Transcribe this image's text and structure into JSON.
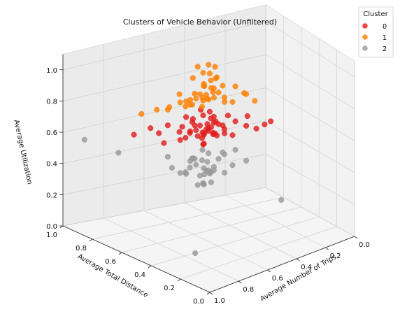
{
  "chart_data": {
    "type": "scatter",
    "projection": "3d",
    "title": "Clusters of Vehicle Behavior (Unfiltered)",
    "xlabel": "Average Number of Trips",
    "ylabel": "Average Total Distance",
    "zlabel": "Average Utilization",
    "xlim": [
      0,
      1
    ],
    "ylim": [
      0,
      1
    ],
    "zlim": [
      0,
      1
    ],
    "x_ticks": [
      "0.0",
      "0.2",
      "0.4",
      "0.6",
      "0.8",
      "1.0"
    ],
    "y_ticks": [
      "0.0",
      "0.2",
      "0.4",
      "0.6",
      "0.8",
      "1.0"
    ],
    "z_ticks": [
      "0.0",
      "0.2",
      "0.4",
      "0.6",
      "0.8",
      "1.0"
    ],
    "grid": true,
    "legend": {
      "title": "Cluster",
      "position": "top-right"
    },
    "series": [
      {
        "name": "0",
        "color": "#e41a1c",
        "points": [
          [
            0.55,
            0.56,
            0.7
          ],
          [
            0.57,
            0.54,
            0.68
          ],
          [
            0.53,
            0.58,
            0.66
          ],
          [
            0.56,
            0.57,
            0.64
          ],
          [
            0.54,
            0.52,
            0.72
          ],
          [
            0.58,
            0.56,
            0.62
          ],
          [
            0.52,
            0.55,
            0.74
          ],
          [
            0.6,
            0.58,
            0.67
          ],
          [
            0.55,
            0.6,
            0.63
          ],
          [
            0.5,
            0.54,
            0.69
          ],
          [
            0.57,
            0.5,
            0.71
          ],
          [
            0.62,
            0.6,
            0.65
          ],
          [
            0.53,
            0.62,
            0.6
          ],
          [
            0.48,
            0.52,
            0.66
          ],
          [
            0.59,
            0.53,
            0.6
          ],
          [
            0.56,
            0.58,
            0.75
          ],
          [
            0.64,
            0.57,
            0.68
          ],
          [
            0.51,
            0.59,
            0.71
          ],
          [
            0.46,
            0.48,
            0.63
          ],
          [
            0.62,
            0.52,
            0.73
          ],
          [
            0.58,
            0.64,
            0.69
          ],
          [
            0.45,
            0.58,
            0.65
          ],
          [
            0.66,
            0.62,
            0.61
          ],
          [
            0.52,
            0.46,
            0.67
          ],
          [
            0.6,
            0.66,
            0.72
          ],
          [
            0.43,
            0.5,
            0.7
          ],
          [
            0.68,
            0.55,
            0.66
          ],
          [
            0.54,
            0.68,
            0.64
          ],
          [
            0.7,
            0.66,
            0.7
          ],
          [
            0.4,
            0.45,
            0.68
          ],
          [
            0.49,
            0.63,
            0.73
          ],
          [
            0.63,
            0.48,
            0.63
          ],
          [
            0.57,
            0.61,
            0.61
          ],
          [
            0.55,
            0.55,
            0.66
          ],
          [
            0.61,
            0.59,
            0.74
          ],
          [
            0.5,
            0.57,
            0.62
          ],
          [
            0.47,
            0.61,
            0.67
          ],
          [
            0.65,
            0.64,
            0.65
          ],
          [
            0.53,
            0.51,
            0.64
          ],
          [
            0.58,
            0.47,
            0.69
          ],
          [
            0.44,
            0.55,
            0.72
          ],
          [
            0.67,
            0.59,
            0.71
          ],
          [
            0.36,
            0.42,
            0.66
          ],
          [
            0.72,
            0.7,
            0.64
          ],
          [
            0.3,
            0.38,
            0.7
          ],
          [
            0.75,
            0.62,
            0.62
          ],
          [
            0.33,
            0.55,
            0.68
          ],
          [
            0.78,
            0.68,
            0.7
          ],
          [
            0.28,
            0.47,
            0.64
          ],
          [
            0.84,
            0.72,
            0.66
          ],
          [
            0.52,
            0.66,
            0.74
          ],
          [
            0.6,
            0.44,
            0.7
          ]
        ]
      },
      {
        "name": "1",
        "color": "#ff7f00",
        "points": [
          [
            0.55,
            0.56,
            0.86
          ],
          [
            0.57,
            0.54,
            0.9
          ],
          [
            0.53,
            0.58,
            0.84
          ],
          [
            0.56,
            0.57,
            0.94
          ],
          [
            0.54,
            0.52,
            0.88
          ],
          [
            0.58,
            0.56,
            0.82
          ],
          [
            0.52,
            0.55,
            0.92
          ],
          [
            0.6,
            0.58,
            0.87
          ],
          [
            0.55,
            0.6,
            0.85
          ],
          [
            0.5,
            0.54,
            0.89
          ],
          [
            0.57,
            0.5,
            0.96
          ],
          [
            0.62,
            0.6,
            0.83
          ],
          [
            0.53,
            0.62,
            0.91
          ],
          [
            0.48,
            0.52,
            0.86
          ],
          [
            0.59,
            0.53,
            0.98
          ],
          [
            0.56,
            0.58,
            1.02
          ],
          [
            0.64,
            0.57,
            0.88
          ],
          [
            0.51,
            0.59,
            0.95
          ],
          [
            0.46,
            0.48,
            0.84
          ],
          [
            0.62,
            0.52,
            0.93
          ],
          [
            0.58,
            0.64,
            0.8
          ],
          [
            0.45,
            0.58,
            0.9
          ],
          [
            0.66,
            0.62,
            0.85
          ],
          [
            0.52,
            0.46,
            0.87
          ],
          [
            0.6,
            0.66,
            0.82
          ],
          [
            0.43,
            0.5,
            0.92
          ],
          [
            0.68,
            0.55,
            0.86
          ],
          [
            0.54,
            0.68,
            0.84
          ],
          [
            0.7,
            0.66,
            0.8
          ],
          [
            0.4,
            0.45,
            0.88
          ],
          [
            0.49,
            0.63,
            0.97
          ],
          [
            0.63,
            0.48,
            0.91
          ],
          [
            0.57,
            0.61,
            1.05
          ],
          [
            0.55,
            0.55,
            1.08
          ],
          [
            0.61,
            0.59,
            1.0
          ],
          [
            0.5,
            0.57,
            1.04
          ],
          [
            0.47,
            0.61,
            0.94
          ],
          [
            0.65,
            0.64,
            0.89
          ],
          [
            0.53,
            0.51,
            1.01
          ],
          [
            0.58,
            0.47,
            0.95
          ],
          [
            0.38,
            0.5,
            0.86
          ],
          [
            0.72,
            0.62,
            0.84
          ],
          [
            0.35,
            0.45,
            0.82
          ],
          [
            0.76,
            0.66,
            0.82
          ],
          [
            0.8,
            0.72,
            0.78
          ]
        ]
      },
      {
        "name": "2",
        "color": "#999999",
        "points": [
          [
            0.55,
            0.56,
            0.46
          ],
          [
            0.57,
            0.54,
            0.42
          ],
          [
            0.53,
            0.58,
            0.5
          ],
          [
            0.56,
            0.57,
            0.38
          ],
          [
            0.54,
            0.52,
            0.44
          ],
          [
            0.58,
            0.56,
            0.48
          ],
          [
            0.52,
            0.55,
            0.4
          ],
          [
            0.6,
            0.58,
            0.45
          ],
          [
            0.55,
            0.6,
            0.52
          ],
          [
            0.5,
            0.54,
            0.47
          ],
          [
            0.57,
            0.5,
            0.36
          ],
          [
            0.62,
            0.6,
            0.43
          ],
          [
            0.53,
            0.62,
            0.39
          ],
          [
            0.48,
            0.52,
            0.5
          ],
          [
            0.59,
            0.53,
            0.34
          ],
          [
            0.56,
            0.58,
            0.32
          ],
          [
            0.64,
            0.57,
            0.49
          ],
          [
            0.51,
            0.59,
            0.37
          ],
          [
            0.46,
            0.48,
            0.44
          ],
          [
            0.62,
            0.52,
            0.41
          ],
          [
            0.58,
            0.64,
            0.46
          ],
          [
            0.45,
            0.58,
            0.48
          ],
          [
            0.66,
            0.62,
            0.4
          ],
          [
            0.52,
            0.46,
            0.42
          ],
          [
            0.6,
            0.66,
            0.36
          ],
          [
            0.43,
            0.5,
            0.52
          ],
          [
            0.68,
            0.55,
            0.44
          ],
          [
            0.54,
            0.68,
            0.43
          ],
          [
            0.7,
            0.66,
            0.5
          ],
          [
            0.4,
            0.45,
            0.46
          ],
          [
            0.49,
            0.63,
            0.34
          ],
          [
            0.63,
            0.48,
            0.38
          ],
          [
            0.57,
            0.61,
            0.3
          ],
          [
            0.55,
            0.55,
            0.41
          ],
          [
            0.61,
            0.59,
            0.49
          ],
          [
            0.72,
            0.6,
            0.46
          ],
          [
            0.9,
            0.75,
            0.55
          ],
          [
            0.98,
            0.88,
            0.6
          ],
          [
            0.98,
            0.12,
            0.2
          ],
          [
            0.05,
            0.72,
            0.02
          ]
        ]
      }
    ]
  }
}
